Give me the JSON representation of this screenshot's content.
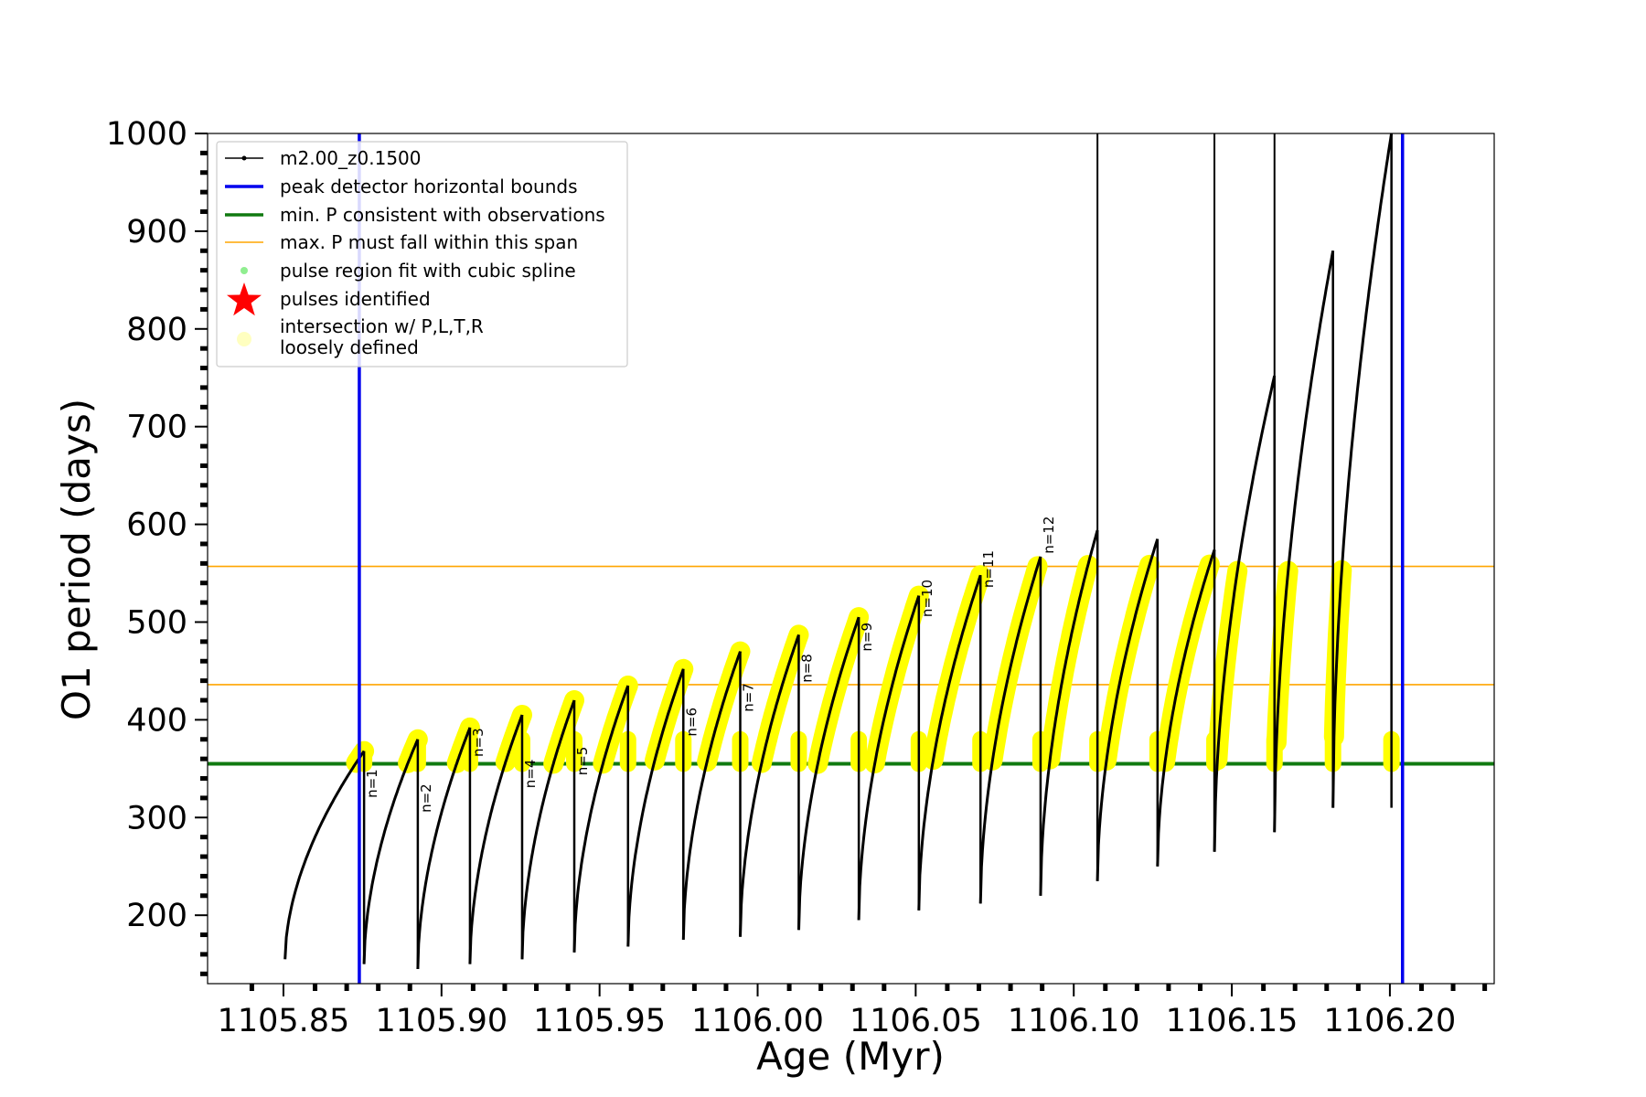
{
  "chart_data": {
    "type": "scatter",
    "xlabel": "Age (Myr)",
    "ylabel": "O1 period (days)",
    "xlim": [
      1105.826,
      1106.233
    ],
    "ylim": [
      130,
      1000
    ],
    "x_ticks": [
      "1105.85",
      "1105.90",
      "1105.95",
      "1106.00",
      "1106.05",
      "1106.10",
      "1106.15",
      "1106.20"
    ],
    "x_tick_values": [
      1105.85,
      1105.9,
      1105.95,
      1106.0,
      1106.05,
      1106.1,
      1106.15,
      1106.2
    ],
    "y_ticks": [
      "200",
      "300",
      "400",
      "500",
      "600",
      "700",
      "800",
      "900",
      "1000"
    ],
    "y_tick_values": [
      200,
      300,
      400,
      500,
      600,
      700,
      800,
      900,
      1000
    ],
    "x_minor_step": 0.01,
    "y_minor_step": 20,
    "grid": false,
    "legend": {
      "placement": "upper-left",
      "entries": [
        {
          "label": "m2.00_z0.1500",
          "color": "#000000",
          "marker": "line-dot"
        },
        {
          "label": "peak detector horizontal bounds",
          "color": "#0000ee",
          "marker": "line"
        },
        {
          "label": "min. P consistent with observations",
          "color": "#107a10",
          "marker": "line"
        },
        {
          "label": "max. P must fall within this span",
          "color": "#ffa500",
          "marker": "thin-line"
        },
        {
          "label": "pulse region fit with cubic spline",
          "color": "#90ee90",
          "marker": "dot"
        },
        {
          "label": "pulses identified",
          "color": "#ff0000",
          "marker": "star"
        },
        {
          "label": "intersection w/ P,L,T,R",
          "label2": "loosely defined",
          "color": "#ffffc0",
          "marker": "circle"
        }
      ]
    },
    "vertical_lines": {
      "color": "#0000ee",
      "x": [
        1105.874,
        1106.204
      ]
    },
    "min_period_line": {
      "color": "#107a10",
      "y": 355
    },
    "max_period_span": {
      "color": "#ffa500",
      "y": [
        436,
        557
      ]
    },
    "series": [
      {
        "name": "m2.00_z0.1500",
        "color": "#000000",
        "cycles": [
          {
            "x0": 1105.8505,
            "x1": 1105.8755,
            "p_min": 155,
            "p_max": 368
          },
          {
            "x0": 1105.8755,
            "x1": 1105.8925,
            "p_min": 150,
            "p_max": 380
          },
          {
            "x0": 1105.8925,
            "x1": 1105.909,
            "p_min": 145,
            "p_max": 392
          },
          {
            "x0": 1105.909,
            "x1": 1105.9255,
            "p_min": 150,
            "p_max": 405
          },
          {
            "x0": 1105.9255,
            "x1": 1105.942,
            "p_min": 155,
            "p_max": 420
          },
          {
            "x0": 1105.942,
            "x1": 1105.959,
            "p_min": 162,
            "p_max": 435
          },
          {
            "x0": 1105.959,
            "x1": 1105.9765,
            "p_min": 168,
            "p_max": 452
          },
          {
            "x0": 1105.9765,
            "x1": 1105.9945,
            "p_min": 175,
            "p_max": 470
          },
          {
            "x0": 1105.9945,
            "x1": 1106.013,
            "p_min": 178,
            "p_max": 487
          },
          {
            "x0": 1106.013,
            "x1": 1106.032,
            "p_min": 185,
            "p_max": 505
          },
          {
            "x0": 1106.032,
            "x1": 1106.051,
            "p_min": 195,
            "p_max": 527
          },
          {
            "x0": 1106.051,
            "x1": 1106.0705,
            "p_min": 205,
            "p_max": 548
          },
          {
            "x0": 1106.0705,
            "x1": 1106.0895,
            "p_min": 212,
            "p_max": 567
          },
          {
            "x0": 1106.0895,
            "x1": 1106.1075,
            "p_min": 220,
            "p_max": 594
          },
          {
            "x0": 1106.1075,
            "x1": 1106.1265,
            "p_min": 235,
            "p_max": 585
          },
          {
            "x0": 1106.1265,
            "x1": 1106.1445,
            "p_min": 250,
            "p_max": 574
          },
          {
            "x0": 1106.1445,
            "x1": 1106.1635,
            "p_min": 265,
            "p_max": 752
          },
          {
            "x0": 1106.1635,
            "x1": 1106.182,
            "p_min": 285,
            "p_max": 880
          },
          {
            "x0": 1106.182,
            "x1": 1106.2005,
            "p_min": 310,
            "p_max": 1000
          }
        ]
      },
      {
        "name": "intersection w/ P,L,T,R loosely defined",
        "color": "#ffff00",
        "band": [
          355,
          557
        ]
      }
    ],
    "pulse_labels": [
      {
        "text": "n=1",
        "x": 1105.8755,
        "y": 320
      },
      {
        "text": "n=2",
        "x": 1105.8925,
        "y": 305
      },
      {
        "text": "n=3",
        "x": 1105.909,
        "y": 362
      },
      {
        "text": "n=4",
        "x": 1105.9255,
        "y": 330
      },
      {
        "text": "n=5",
        "x": 1105.942,
        "y": 343
      },
      {
        "text": "n=6",
        "x": 1105.9765,
        "y": 383
      },
      {
        "text": "n=7",
        "x": 1105.9945,
        "y": 408
      },
      {
        "text": "n=8",
        "x": 1106.013,
        "y": 438
      },
      {
        "text": "n=9",
        "x": 1106.032,
        "y": 470
      },
      {
        "text": "n=10",
        "x": 1106.051,
        "y": 505
      },
      {
        "text": "n=11",
        "x": 1106.0705,
        "y": 535
      },
      {
        "text": "n=12",
        "x": 1106.0895,
        "y": 570
      }
    ]
  }
}
